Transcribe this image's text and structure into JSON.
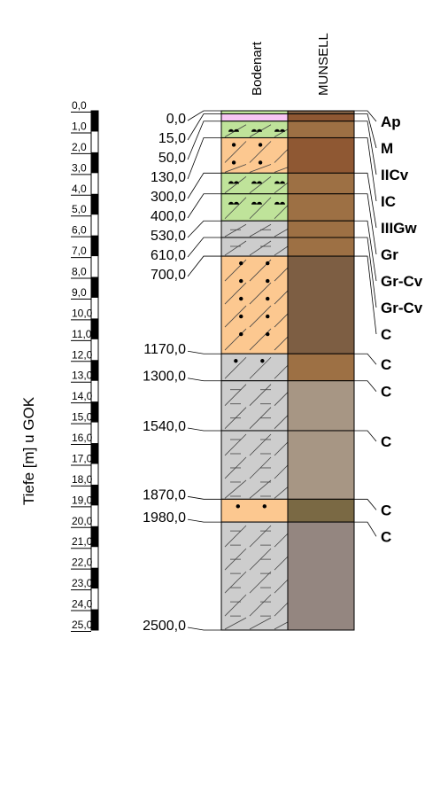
{
  "headers": {
    "soil_type": "Bodenart",
    "munsell": "MUNSELL"
  },
  "axis_title": "Tiefe [m] u GOK",
  "scale": {
    "min_m": 0,
    "max_m": 25,
    "labels": [
      "0,0",
      "1,0",
      "2,0",
      "3,0",
      "4,0",
      "5,0",
      "6,0",
      "7,0",
      "8,0",
      "9,0",
      "10,0",
      "11,0",
      "12,0",
      "13,0",
      "14,0",
      "15,0",
      "16,0",
      "17,0",
      "18,0",
      "19,0",
      "20,0",
      "21,0",
      "22,0",
      "23,0",
      "24,0",
      "25,0"
    ]
  },
  "boundary_labels": [
    "0,0",
    "15,0",
    "50,0",
    "130,0",
    "300,0",
    "400,0",
    "530,0",
    "610,0",
    "700,0",
    "1170,0",
    "1300,0",
    "1540,0",
    "1870,0",
    "1980,0",
    "2500,0"
  ],
  "colors": {
    "loam_green": "#bfe39a",
    "peat_pink": "#f8c6f4",
    "sand_orange": "#fcc890",
    "clay_grey": "#cdcdcd",
    "munsell_dark_brown": "#7d5e43",
    "munsell_red_brown": "#8f5833",
    "munsell_brown": "#9d7044",
    "munsell_light_grey_brown": "#a79684",
    "munsell_olive": "#7a6944",
    "munsell_grey_brown": "#948680"
  },
  "layers": [
    {
      "top_cm": 0,
      "bottom_cm": 15,
      "horizon": "Ap",
      "soil": "loam_green",
      "pattern": "silt_gravel",
      "munsell": "munsell_dark_brown"
    },
    {
      "top_cm": 15,
      "bottom_cm": 50,
      "horizon": "M",
      "soil": "peat_pink",
      "pattern": "silt_gravel",
      "munsell": "munsell_red_brown"
    },
    {
      "top_cm": 50,
      "bottom_cm": 130,
      "horizon": "IICv",
      "soil": "loam_green",
      "pattern": "gravel_clay",
      "munsell": "munsell_brown"
    },
    {
      "top_cm": 130,
      "bottom_cm": 300,
      "horizon": "IC",
      "soil": "sand_orange",
      "pattern": "dots_clay",
      "munsell": "munsell_red_brown"
    },
    {
      "top_cm": 300,
      "bottom_cm": 400,
      "horizon": "IIIGw",
      "soil": "loam_green",
      "pattern": "gravel_clay",
      "munsell": "munsell_brown"
    },
    {
      "top_cm": 400,
      "bottom_cm": 530,
      "horizon": "Gr",
      "soil": "loam_green",
      "pattern": "gravel_clay",
      "munsell": "munsell_brown"
    },
    {
      "top_cm": 530,
      "bottom_cm": 610,
      "horizon": "Gr-Cv",
      "soil": "clay_grey",
      "pattern": "clay_silt",
      "munsell": "munsell_brown"
    },
    {
      "top_cm": 610,
      "bottom_cm": 700,
      "horizon": "Gr-Cv",
      "soil": "clay_grey",
      "pattern": "clay_silt",
      "munsell": "munsell_brown"
    },
    {
      "top_cm": 700,
      "bottom_cm": 1170,
      "horizon": "C",
      "soil": "sand_orange",
      "pattern": "dots_clay",
      "munsell": "munsell_dark_brown"
    },
    {
      "top_cm": 1170,
      "bottom_cm": 1300,
      "horizon": "C",
      "soil": "clay_grey",
      "pattern": "clay_dots",
      "munsell": "munsell_brown"
    },
    {
      "top_cm": 1300,
      "bottom_cm": 1540,
      "horizon": "C",
      "soil": "clay_grey",
      "pattern": "clay_silt",
      "munsell": "munsell_light_grey_brown"
    },
    {
      "top_cm": 1540,
      "bottom_cm": 1870,
      "horizon": "C",
      "soil": "clay_grey",
      "pattern": "clay_silt",
      "munsell": "munsell_light_grey_brown"
    },
    {
      "top_cm": 1870,
      "bottom_cm": 1980,
      "horizon": "C",
      "soil": "sand_orange",
      "pattern": "dots",
      "munsell": "munsell_olive"
    },
    {
      "top_cm": 1980,
      "bottom_cm": 2500,
      "horizon": "C",
      "soil": "clay_grey",
      "pattern": "clay_silt",
      "munsell": "munsell_grey_brown"
    }
  ]
}
